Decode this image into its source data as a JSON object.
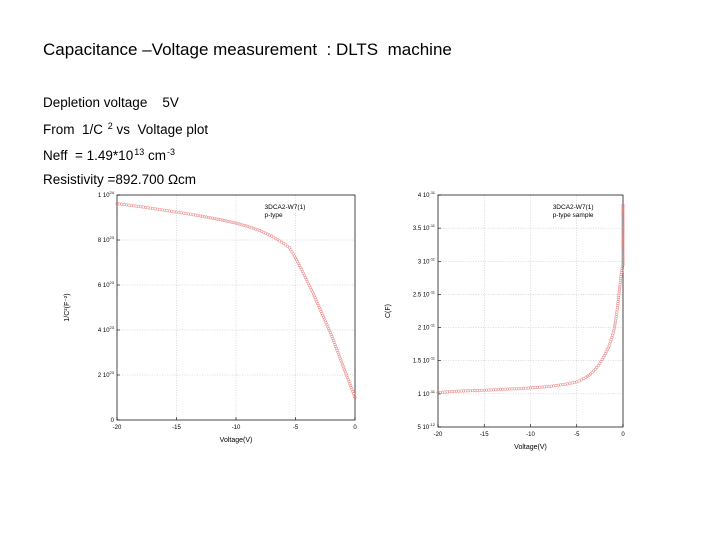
{
  "slide": {
    "title": "Capacitance –Voltage measurement  : DLTS  machine",
    "line1": "Depletion voltage    5V",
    "line2_prefix": "From  1/C",
    "line2_exp": "2",
    "line2_suffix": " vs  Voltage plot",
    "line3_prefix": "Neff  = 1.49*10",
    "line3_exp1": "13",
    "line3_mid": " cm",
    "line3_exp2": "-3",
    "line4": "Resistivity =892.700 Ωcm"
  },
  "chart_data": [
    {
      "type": "scatter",
      "title": "",
      "annotation": [
        "3DCA2-W7(1)",
        "p-type"
      ],
      "xlabel": "Voltage(V)",
      "ylabel": "1/C²(F⁻²)",
      "xlim": [
        -20,
        0
      ],
      "ylim": [
        0,
        1e+24
      ],
      "grid": true,
      "marker_color": "#e47b7b",
      "xticks": [
        {
          "value": -20,
          "label": "-20"
        },
        {
          "value": -15,
          "label": "-15"
        },
        {
          "value": -10,
          "label": "-10"
        },
        {
          "value": -5,
          "label": "-5"
        },
        {
          "value": 0,
          "label": "0"
        }
      ],
      "yticks": [
        {
          "value": 0,
          "mant": "0",
          "exp": ""
        },
        {
          "value": 2e+23,
          "mant": "2 10",
          "exp": "23"
        },
        {
          "value": 4e+23,
          "mant": "4 10",
          "exp": "23"
        },
        {
          "value": 6e+23,
          "mant": "6 10",
          "exp": "23"
        },
        {
          "value": 8e+23,
          "mant": "8 10",
          "exp": "23"
        },
        {
          "value": 1e+24,
          "mant": "1 10",
          "exp": "24"
        }
      ],
      "x": [
        -20,
        -19,
        -18,
        -17,
        -16,
        -15,
        -14,
        -13,
        -12,
        -11,
        -10,
        -9,
        -8,
        -7,
        -6,
        -5.5,
        -5,
        -4.5,
        -4,
        -3.5,
        -3,
        -2.5,
        -2,
        -1.5,
        -1,
        -0.5,
        0
      ],
      "y": [
        9.62e+23,
        9.55e+23,
        9.48e+23,
        9.4e+23,
        9.32e+23,
        9.24e+23,
        9.16e+23,
        9.07e+23,
        8.97e+23,
        8.87e+23,
        8.75e+23,
        8.6e+23,
        8.42e+23,
        8.18e+23,
        7.85e+23,
        7.65e+23,
        7.2e+23,
        6.7e+23,
        6.15e+23,
        5.6e+23,
        5e+23,
        4.4e+23,
        3.8e+23,
        3.1e+23,
        2.4e+23,
        1.7e+23,
        1e+23
      ]
    },
    {
      "type": "scatter",
      "title": "",
      "annotation": [
        "3DCA2-W7(1)",
        "p-type sample"
      ],
      "xlabel": "Voltage(V)",
      "ylabel": "C(F)",
      "xlim": [
        -20,
        0
      ],
      "ylim": [
        5e-12,
        4e-11
      ],
      "grid": true,
      "marker_color": "#e47b7b",
      "xticks": [
        {
          "value": -20,
          "label": "-20"
        },
        {
          "value": -15,
          "label": "-15"
        },
        {
          "value": -10,
          "label": "-10"
        },
        {
          "value": -5,
          "label": "-5"
        },
        {
          "value": 0,
          "label": "0"
        }
      ],
      "yticks": [
        {
          "value": 5e-12,
          "mant": "5 10",
          "exp": "-12"
        },
        {
          "value": 1e-11,
          "mant": "1 10",
          "exp": "-11"
        },
        {
          "value": 1.5e-11,
          "mant": "1.5 10",
          "exp": "-11"
        },
        {
          "value": 2e-11,
          "mant": "2 10",
          "exp": "-11"
        },
        {
          "value": 2.5e-11,
          "mant": "2.5 10",
          "exp": "-11"
        },
        {
          "value": 3e-11,
          "mant": "3 10",
          "exp": "-11"
        },
        {
          "value": 3.5e-11,
          "mant": "3.5 10",
          "exp": "-11"
        },
        {
          "value": 4e-11,
          "mant": "4 10",
          "exp": "-11"
        }
      ],
      "x": [
        -20,
        -19,
        -18,
        -17,
        -16,
        -15,
        -14,
        -13,
        -12,
        -11,
        -10,
        -9,
        -8,
        -7,
        -6,
        -5,
        -4.5,
        -4,
        -3.5,
        -3,
        -2.5,
        -2,
        -1.5,
        -1,
        -0.8,
        -0.6,
        -0.4,
        -0.2,
        0,
        0,
        0,
        0,
        0
      ],
      "y": [
        1.02e-11,
        1.03e-11,
        1.04e-11,
        1.045e-11,
        1.05e-11,
        1.055e-11,
        1.06e-11,
        1.07e-11,
        1.075e-11,
        1.08e-11,
        1.09e-11,
        1.1e-11,
        1.11e-11,
        1.13e-11,
        1.15e-11,
        1.18e-11,
        1.21e-11,
        1.25e-11,
        1.3e-11,
        1.37e-11,
        1.46e-11,
        1.58e-11,
        1.72e-11,
        1.95e-11,
        2.1e-11,
        2.3e-11,
        2.55e-11,
        2.8e-11,
        2.95e-11,
        3.1e-11,
        3.3e-11,
        3.55e-11,
        3.85e-11
      ]
    }
  ]
}
